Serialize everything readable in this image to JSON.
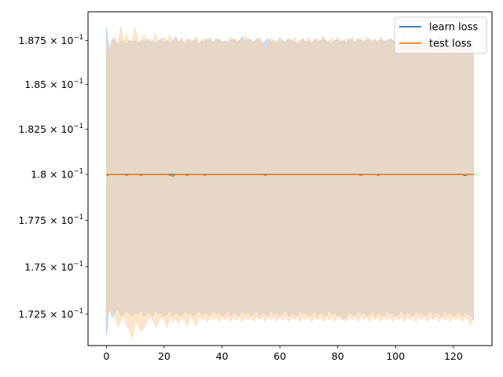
{
  "chart_data": {
    "type": "line",
    "xlim": [
      -6.35,
      133.35
    ],
    "ylim": [
      0.17085,
      0.18915
    ],
    "yscale": "log",
    "grid": false,
    "legend_position": "top-right",
    "x_ticks": [
      0,
      20,
      40,
      60,
      80,
      100,
      120
    ],
    "x_tick_labels": [
      "0",
      "20",
      "40",
      "60",
      "80",
      "100",
      "120"
    ],
    "y_ticks": [
      0.1725,
      0.175,
      0.1775,
      0.18,
      0.1825,
      0.185,
      0.1875
    ],
    "y_tick_labels": [
      {
        "mantissa": "1.725",
        "base": "10",
        "exponent": "−1"
      },
      {
        "mantissa": "1.75",
        "base": "10",
        "exponent": "−1"
      },
      {
        "mantissa": "1.775",
        "base": "10",
        "exponent": "−1"
      },
      {
        "mantissa": "1.8",
        "base": "10",
        "exponent": "−1"
      },
      {
        "mantissa": "1.825",
        "base": "10",
        "exponent": "−1"
      },
      {
        "mantissa": "1.85",
        "base": "10",
        "exponent": "−1"
      },
      {
        "mantissa": "1.875",
        "base": "10",
        "exponent": "−1"
      }
    ],
    "series": [
      {
        "name": "learn loss",
        "color": "#1f77b4",
        "band_color": "#9ec8f0",
        "x_start": 0,
        "x_end": 127,
        "x_step": 1,
        "mean": [
          0.17995,
          0.18,
          0.18,
          0.18,
          0.18,
          0.18,
          0.18,
          0.18,
          0.18,
          0.18,
          0.18,
          0.18,
          0.18,
          0.18,
          0.18,
          0.18,
          0.18,
          0.18,
          0.18,
          0.18,
          0.18,
          0.18,
          0.18,
          0.18,
          0.18,
          0.18,
          0.18,
          0.18,
          0.18,
          0.18,
          0.18,
          0.18,
          0.18,
          0.18,
          0.18,
          0.18,
          0.18,
          0.18,
          0.18,
          0.18,
          0.18,
          0.18,
          0.18,
          0.18,
          0.18,
          0.18,
          0.18,
          0.18,
          0.18,
          0.18,
          0.18,
          0.18,
          0.18,
          0.18,
          0.18,
          0.18,
          0.18,
          0.18,
          0.18,
          0.18,
          0.18,
          0.18,
          0.18,
          0.18,
          0.18,
          0.18,
          0.18,
          0.18,
          0.18,
          0.18,
          0.18,
          0.18,
          0.18,
          0.18,
          0.18,
          0.18,
          0.18,
          0.18,
          0.18,
          0.18,
          0.18,
          0.18,
          0.18,
          0.18,
          0.18,
          0.18,
          0.18,
          0.18,
          0.18,
          0.18,
          0.18,
          0.18,
          0.18,
          0.18,
          0.18,
          0.18,
          0.18,
          0.18,
          0.18,
          0.18,
          0.18,
          0.18,
          0.18,
          0.18,
          0.18,
          0.18,
          0.18,
          0.18,
          0.18,
          0.18,
          0.18,
          0.18,
          0.18,
          0.18,
          0.18,
          0.18,
          0.18,
          0.18,
          0.18,
          0.18,
          0.18,
          0.18,
          0.18,
          0.18,
          0.17995,
          0.18,
          0.18,
          0.18
        ],
        "upper": [
          0.1882,
          0.1868,
          0.1876,
          0.1875,
          0.1872,
          0.1875,
          0.1874,
          0.1873,
          0.1875,
          0.1874,
          0.1875,
          0.1873,
          0.1875,
          0.1874,
          0.1876,
          0.1874,
          0.1875,
          0.1873,
          0.1875,
          0.1876,
          0.1874,
          0.1875,
          0.1873,
          0.1875,
          0.1877,
          0.1874,
          0.1875,
          0.1873,
          0.1876,
          0.1874,
          0.1875,
          0.1876,
          0.1873,
          0.1875,
          0.1874,
          0.1876,
          0.1875,
          0.1874,
          0.1876,
          0.1875,
          0.1874,
          0.1875,
          0.1873,
          0.1875,
          0.1876,
          0.1874,
          0.1875,
          0.1877,
          0.1874,
          0.1876,
          0.1875,
          0.1874,
          0.1876,
          0.1875,
          0.1873,
          0.1875,
          0.1876,
          0.1874,
          0.1875,
          0.1873,
          0.1876,
          0.1875,
          0.1874,
          0.1876,
          0.1875,
          0.1874,
          0.1873,
          0.1875,
          0.1876,
          0.1874,
          0.1875,
          0.1873,
          0.1876,
          0.1874,
          0.1875,
          0.1876,
          0.1875,
          0.1874,
          0.1873,
          0.1875,
          0.1876,
          0.1874,
          0.1875,
          0.1873,
          0.1876,
          0.1875,
          0.1874,
          0.1876,
          0.1875,
          0.1873,
          0.1875,
          0.1876,
          0.1874,
          0.1875,
          0.1873,
          0.1876,
          0.1874,
          0.1875,
          0.1876,
          0.1875,
          0.1874,
          0.1873,
          0.1875,
          0.1876,
          0.1874,
          0.1875,
          0.1873,
          0.1876,
          0.1874,
          0.1875,
          0.1876,
          0.1875,
          0.1874,
          0.1873,
          0.1875,
          0.1876,
          0.1874,
          0.1875,
          0.1873,
          0.1876,
          0.1874,
          0.1875,
          0.1876,
          0.1875,
          0.1874,
          0.1873,
          0.1875,
          0.1874
        ],
        "lower": [
          0.1714,
          0.1729,
          0.1723,
          0.1726,
          0.1728,
          0.1724,
          0.1725,
          0.1727,
          0.1725,
          0.1724,
          0.1726,
          0.1725,
          0.1727,
          0.1724,
          0.1725,
          0.1726,
          0.1724,
          0.1727,
          0.1725,
          0.1726,
          0.1724,
          0.1725,
          0.1727,
          0.1724,
          0.1726,
          0.1725,
          0.1724,
          0.1727,
          0.1725,
          0.1726,
          0.1724,
          0.1725,
          0.1727,
          0.1724,
          0.1726,
          0.1725,
          0.1724,
          0.1727,
          0.1725,
          0.1726,
          0.1724,
          0.1725,
          0.1727,
          0.1724,
          0.1726,
          0.1725,
          0.1724,
          0.1727,
          0.1725,
          0.1726,
          0.1724,
          0.1725,
          0.1727,
          0.1724,
          0.1726,
          0.1725,
          0.1724,
          0.1727,
          0.1725,
          0.1726,
          0.1724,
          0.1725,
          0.1727,
          0.1724,
          0.1726,
          0.1725,
          0.1724,
          0.1727,
          0.1725,
          0.1726,
          0.1724,
          0.1725,
          0.1727,
          0.1724,
          0.1726,
          0.1725,
          0.1724,
          0.1727,
          0.1725,
          0.1726,
          0.1724,
          0.1725,
          0.1722,
          0.1724,
          0.1726,
          0.1725,
          0.1724,
          0.1727,
          0.1725,
          0.1726,
          0.1724,
          0.1725,
          0.1727,
          0.1724,
          0.1726,
          0.1725,
          0.1724,
          0.1727,
          0.1725,
          0.1726,
          0.1724,
          0.1725,
          0.1727,
          0.1724,
          0.1726,
          0.1725,
          0.1724,
          0.1727,
          0.1725,
          0.1726,
          0.1724,
          0.1725,
          0.1727,
          0.1724,
          0.1726,
          0.1725,
          0.1724,
          0.1727,
          0.1725,
          0.1726,
          0.1724,
          0.1725,
          0.1727,
          0.1724,
          0.1726,
          0.1725,
          0.1724,
          0.1722
        ]
      },
      {
        "name": "test loss",
        "color": "#ff7f0e",
        "band_color": "#ffcf9f",
        "x_start": 0,
        "x_end": 127,
        "x_step": 1,
        "mean": [
          0.18,
          0.18,
          0.18,
          0.18,
          0.18,
          0.18,
          0.18,
          0.17995,
          0.18,
          0.18,
          0.18,
          0.18,
          0.17995,
          0.18,
          0.18,
          0.18,
          0.18,
          0.18,
          0.18,
          0.18,
          0.18,
          0.18,
          0.17995,
          0.1799,
          0.18,
          0.18,
          0.18,
          0.18,
          0.17995,
          0.18,
          0.18,
          0.18,
          0.18,
          0.18,
          0.17995,
          0.18,
          0.18,
          0.18,
          0.18,
          0.18,
          0.18,
          0.18,
          0.18,
          0.18,
          0.18,
          0.18,
          0.18,
          0.18,
          0.18,
          0.18,
          0.18,
          0.18,
          0.18,
          0.18,
          0.18,
          0.17995,
          0.18,
          0.18,
          0.18,
          0.18,
          0.18,
          0.18,
          0.18,
          0.18,
          0.18,
          0.18,
          0.18,
          0.18,
          0.18,
          0.18,
          0.18,
          0.18,
          0.18,
          0.18,
          0.18,
          0.18,
          0.18,
          0.18,
          0.18,
          0.18,
          0.18,
          0.18,
          0.18,
          0.18,
          0.18,
          0.18,
          0.18,
          0.18,
          0.17995,
          0.18,
          0.18,
          0.18,
          0.18,
          0.18,
          0.17995,
          0.18,
          0.18,
          0.18,
          0.18,
          0.18,
          0.18,
          0.18,
          0.18,
          0.18,
          0.18,
          0.18,
          0.18,
          0.18,
          0.18,
          0.18,
          0.18,
          0.18,
          0.18,
          0.18,
          0.18,
          0.18,
          0.18,
          0.18,
          0.18,
          0.18,
          0.18,
          0.18,
          0.18,
          0.18,
          0.18,
          0.18,
          0.18,
          0.18
        ],
        "upper": [
          0.1868,
          0.1873,
          0.1874,
          0.1877,
          0.1872,
          0.1883,
          0.1874,
          0.1879,
          0.1873,
          0.1876,
          0.1882,
          0.1874,
          0.1875,
          0.1878,
          0.1873,
          0.1876,
          0.1874,
          0.1879,
          0.1873,
          0.1875,
          0.1877,
          0.1874,
          0.1878,
          0.1873,
          0.1876,
          0.1874,
          0.1877,
          0.1873,
          0.1875,
          0.1876,
          0.1874,
          0.1877,
          0.1873,
          0.1875,
          0.1876,
          0.1874,
          0.1877,
          0.1873,
          0.1875,
          0.1876,
          0.1874,
          0.1873,
          0.1875,
          0.1877,
          0.1874,
          0.1876,
          0.1873,
          0.1875,
          0.1878,
          0.1874,
          0.1876,
          0.1873,
          0.1875,
          0.1877,
          0.1874,
          0.1869,
          0.1873,
          0.1876,
          0.1875,
          0.1874,
          0.1877,
          0.1873,
          0.1875,
          0.1876,
          0.1874,
          0.1877,
          0.1873,
          0.1875,
          0.1876,
          0.1874,
          0.1877,
          0.1873,
          0.1875,
          0.1876,
          0.1874,
          0.1878,
          0.1873,
          0.1875,
          0.1876,
          0.1874,
          0.1877,
          0.1873,
          0.1875,
          0.1876,
          0.1874,
          0.1877,
          0.1873,
          0.1875,
          0.1876,
          0.1874,
          0.1877,
          0.1873,
          0.1875,
          0.1876,
          0.1874,
          0.1877,
          0.1873,
          0.1875,
          0.1876,
          0.1874,
          0.1877,
          0.1873,
          0.1875,
          0.1876,
          0.1874,
          0.1877,
          0.1873,
          0.1875,
          0.1876,
          0.1874,
          0.1877,
          0.1873,
          0.1875,
          0.1876,
          0.1874,
          0.1877,
          0.1873,
          0.1875,
          0.1876,
          0.1874,
          0.1877,
          0.1873,
          0.1875,
          0.1876,
          0.1874,
          0.1877,
          0.1869,
          0.1874
        ],
        "lower": [
          0.1724,
          0.1727,
          0.1726,
          0.1724,
          0.1718,
          0.1722,
          0.1725,
          0.1719,
          0.1717,
          0.1712,
          0.1722,
          0.1719,
          0.1716,
          0.1718,
          0.1721,
          0.1724,
          0.1722,
          0.1718,
          0.1721,
          0.1724,
          0.1722,
          0.1718,
          0.1724,
          0.1721,
          0.1723,
          0.172,
          0.1724,
          0.1722,
          0.1719,
          0.1724,
          0.1722,
          0.1719,
          0.1724,
          0.1722,
          0.1723,
          0.1721,
          0.1724,
          0.1722,
          0.1724,
          0.1721,
          0.1724,
          0.1722,
          0.1724,
          0.1721,
          0.1724,
          0.1722,
          0.1724,
          0.1721,
          0.1724,
          0.1722,
          0.1724,
          0.1721,
          0.1724,
          0.1722,
          0.1724,
          0.1721,
          0.1724,
          0.1722,
          0.1724,
          0.1721,
          0.1724,
          0.1722,
          0.1724,
          0.1721,
          0.1724,
          0.1722,
          0.1724,
          0.1721,
          0.1724,
          0.1722,
          0.1724,
          0.1721,
          0.1724,
          0.1722,
          0.1724,
          0.1721,
          0.1724,
          0.1722,
          0.1724,
          0.1721,
          0.1724,
          0.1722,
          0.1724,
          0.1721,
          0.1724,
          0.1722,
          0.1724,
          0.1721,
          0.1724,
          0.1722,
          0.1724,
          0.1721,
          0.1724,
          0.1722,
          0.1724,
          0.1721,
          0.1724,
          0.1722,
          0.1724,
          0.1721,
          0.1724,
          0.1722,
          0.1724,
          0.1721,
          0.1724,
          0.1722,
          0.1724,
          0.1721,
          0.1724,
          0.1722,
          0.1724,
          0.1721,
          0.1724,
          0.1722,
          0.1724,
          0.1721,
          0.1724,
          0.1722,
          0.1724,
          0.1721,
          0.1724,
          0.1722,
          0.1724,
          0.1721,
          0.1724,
          0.1722,
          0.1719,
          0.1724
        ]
      }
    ]
  }
}
